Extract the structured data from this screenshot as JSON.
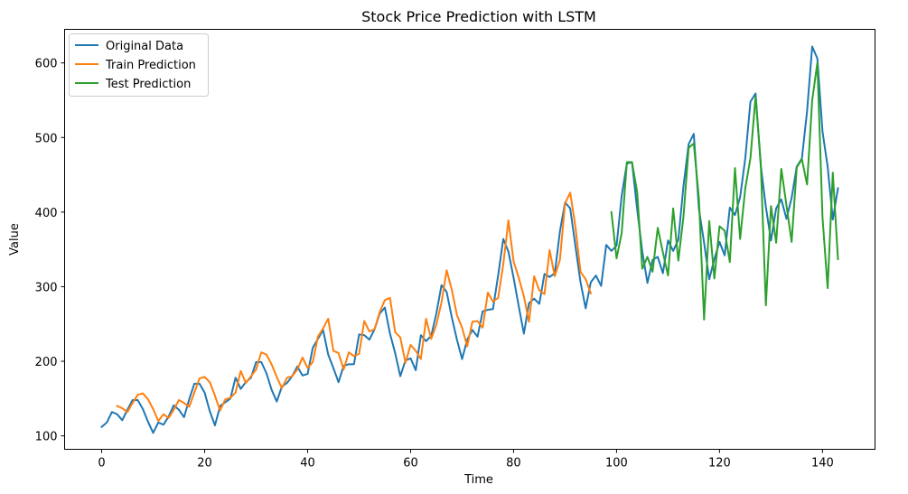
{
  "chart_data": {
    "type": "line",
    "title": "Stock Price Prediction with LSTM",
    "xlabel": "Time",
    "ylabel": "Value",
    "xlim": [
      -7.2,
      150.2
    ],
    "ylim": [
      82,
      645
    ],
    "xticks": [
      0,
      20,
      40,
      60,
      80,
      100,
      120,
      140
    ],
    "yticks": [
      100,
      200,
      300,
      400,
      500,
      600
    ],
    "legend_position": "upper-left",
    "series": [
      {
        "name": "Original Data",
        "color": "#1f77b4",
        "x_start": 0,
        "values": [
          112,
          118,
          132,
          129,
          121,
          135,
          148,
          148,
          136,
          119,
          104,
          118,
          115,
          126,
          141,
          135,
          125,
          149,
          170,
          170,
          158,
          133,
          114,
          140,
          145,
          150,
          178,
          163,
          172,
          178,
          199,
          199,
          184,
          162,
          146,
          166,
          171,
          180,
          193,
          181,
          183,
          218,
          230,
          242,
          209,
          191,
          172,
          194,
          196,
          196,
          236,
          235,
          229,
          243,
          264,
          272,
          237,
          211,
          180,
          201,
          204,
          188,
          235,
          227,
          234,
          264,
          302,
          293,
          259,
          229,
          203,
          229,
          242,
          233,
          267,
          269,
          270,
          315,
          364,
          347,
          312,
          274,
          237,
          278,
          284,
          277,
          317,
          313,
          318,
          374,
          413,
          405,
          355,
          306,
          271,
          306,
          315,
          301,
          356,
          348,
          355,
          422,
          465,
          467,
          404,
          347,
          305,
          336,
          340,
          318,
          362,
          348,
          363,
          435,
          491,
          505,
          404,
          359,
          310,
          337,
          360,
          342,
          406,
          396,
          420,
          472,
          548,
          559,
          463,
          407,
          362,
          405,
          417,
          391,
          419,
          461,
          472,
          535,
          622,
          606,
          508,
          461,
          390,
          432
        ]
      },
      {
        "name": "Train Prediction",
        "color": "#ff7f0e",
        "x_start": 3,
        "values": [
          140,
          137,
          132,
          144,
          155,
          157,
          149,
          136,
          120,
          129,
          124,
          135,
          148,
          144,
          139,
          158,
          177,
          179,
          172,
          154,
          134,
          149,
          151,
          158,
          187,
          171,
          180,
          189,
          212,
          209,
          196,
          179,
          164,
          178,
          180,
          189,
          205,
          191,
          199,
          233,
          244,
          257,
          214,
          211,
          189,
          212,
          207,
          210,
          254,
          240,
          243,
          266,
          282,
          285,
          239,
          232,
          198,
          222,
          214,
          203,
          257,
          230,
          249,
          279,
          322,
          296,
          262,
          245,
          220,
          253,
          254,
          245,
          292,
          280,
          285,
          330,
          389,
          334,
          312,
          287,
          253,
          314,
          295,
          290,
          349,
          314,
          336,
          412,
          426,
          381,
          320,
          310,
          291
        ]
      },
      {
        "name": "Test Prediction",
        "color": "#2ca02c",
        "x_start": 99,
        "values": [
          400,
          338,
          372,
          467,
          467,
          427,
          324,
          340,
          320,
          379,
          346,
          315,
          405,
          335,
          394,
          486,
          492,
          418,
          256,
          388,
          311,
          381,
          375,
          333,
          459,
          364,
          432,
          472,
          555,
          467,
          275,
          408,
          359,
          458,
          409,
          360,
          460,
          471,
          437,
          550,
          600,
          393,
          298,
          453,
          337
        ]
      }
    ]
  }
}
